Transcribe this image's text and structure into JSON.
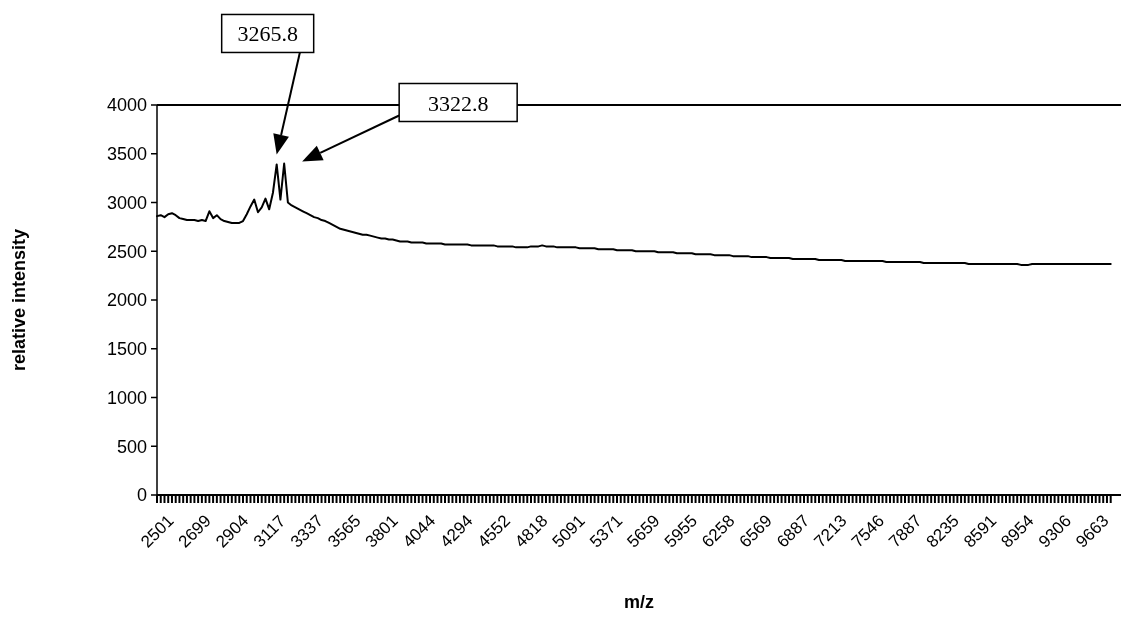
{
  "chart_data": {
    "type": "line",
    "xlabel": "m/z",
    "ylabel": "relative intensity",
    "ylim": [
      0,
      4000
    ],
    "yticks": [
      0,
      500,
      1000,
      1500,
      2000,
      2500,
      3000,
      3500,
      4000
    ],
    "grid": false,
    "marker": "none",
    "line_style": "solid",
    "annotations": [
      "3265.8",
      "3322.8"
    ],
    "categories": [
      "2501",
      null,
      null,
      null,
      null,
      null,
      null,
      null,
      null,
      null,
      "2699",
      null,
      null,
      null,
      null,
      null,
      null,
      null,
      null,
      null,
      "2904",
      null,
      null,
      null,
      null,
      null,
      null,
      null,
      null,
      null,
      "3117",
      null,
      null,
      null,
      null,
      null,
      null,
      null,
      null,
      null,
      "3337",
      null,
      null,
      null,
      null,
      null,
      null,
      null,
      null,
      null,
      "3565",
      null,
      null,
      null,
      null,
      null,
      null,
      null,
      null,
      null,
      "3801",
      null,
      null,
      null,
      null,
      null,
      null,
      null,
      null,
      null,
      "4044",
      null,
      null,
      null,
      null,
      null,
      null,
      null,
      null,
      null,
      "4294",
      null,
      null,
      null,
      null,
      null,
      null,
      null,
      null,
      null,
      "4552",
      null,
      null,
      null,
      null,
      null,
      null,
      null,
      null,
      null,
      "4818",
      null,
      null,
      null,
      null,
      null,
      null,
      null,
      null,
      null,
      "5091",
      null,
      null,
      null,
      null,
      null,
      null,
      null,
      null,
      null,
      "5371",
      null,
      null,
      null,
      null,
      null,
      null,
      null,
      null,
      null,
      "5659",
      null,
      null,
      null,
      null,
      null,
      null,
      null,
      null,
      null,
      "5955",
      null,
      null,
      null,
      null,
      null,
      null,
      null,
      null,
      null,
      "6258",
      null,
      null,
      null,
      null,
      null,
      null,
      null,
      null,
      null,
      "6569",
      null,
      null,
      null,
      null,
      null,
      null,
      null,
      null,
      null,
      "6887",
      null,
      null,
      null,
      null,
      null,
      null,
      null,
      null,
      null,
      "7213",
      null,
      null,
      null,
      null,
      null,
      null,
      null,
      null,
      null,
      "7546",
      null,
      null,
      null,
      null,
      null,
      null,
      null,
      null,
      null,
      "7887",
      null,
      null,
      null,
      null,
      null,
      null,
      null,
      null,
      null,
      "8235",
      null,
      null,
      null,
      null,
      null,
      null,
      null,
      null,
      null,
      "8591",
      null,
      null,
      null,
      null,
      null,
      null,
      null,
      null,
      null,
      "8954",
      null,
      null,
      null,
      null,
      null,
      null,
      null,
      null,
      null,
      "9306",
      null,
      null,
      null,
      null,
      null,
      null,
      null,
      null,
      null,
      "9663",
      null,
      null,
      null,
      null,
      null
    ],
    "series": [
      {
        "color": "#000000",
        "values": [
          2860,
          2870,
          2850,
          2880,
          2890,
          2870,
          2840,
          2830,
          2820,
          2820,
          2820,
          2810,
          2820,
          2810,
          2910,
          2840,
          2870,
          2830,
          2810,
          2800,
          2790,
          2790,
          2790,
          2810,
          2880,
          2960,
          3030,
          2900,
          2950,
          3040,
          2930,
          3100,
          3390,
          3030,
          3400,
          3000,
          2970,
          2950,
          2930,
          2910,
          2890,
          2870,
          2850,
          2840,
          2820,
          2810,
          2790,
          2770,
          2750,
          2730,
          2720,
          2710,
          2700,
          2690,
          2680,
          2670,
          2670,
          2660,
          2650,
          2640,
          2630,
          2630,
          2620,
          2620,
          2610,
          2600,
          2600,
          2600,
          2590,
          2590,
          2590,
          2590,
          2580,
          2580,
          2580,
          2580,
          2580,
          2570,
          2570,
          2570,
          2570,
          2570,
          2570,
          2570,
          2560,
          2560,
          2560,
          2560,
          2560,
          2560,
          2560,
          2550,
          2550,
          2550,
          2550,
          2550,
          2540,
          2540,
          2540,
          2540,
          2550,
          2550,
          2550,
          2560,
          2550,
          2550,
          2550,
          2540,
          2540,
          2540,
          2540,
          2540,
          2540,
          2530,
          2530,
          2530,
          2530,
          2530,
          2520,
          2520,
          2520,
          2520,
          2520,
          2510,
          2510,
          2510,
          2510,
          2510,
          2500,
          2500,
          2500,
          2500,
          2500,
          2500,
          2490,
          2490,
          2490,
          2490,
          2490,
          2480,
          2480,
          2480,
          2480,
          2480,
          2470,
          2470,
          2470,
          2470,
          2470,
          2460,
          2460,
          2460,
          2460,
          2460,
          2450,
          2450,
          2450,
          2450,
          2450,
          2440,
          2440,
          2440,
          2440,
          2440,
          2430,
          2430,
          2430,
          2430,
          2430,
          2430,
          2420,
          2420,
          2420,
          2420,
          2420,
          2420,
          2420,
          2410,
          2410,
          2410,
          2410,
          2410,
          2410,
          2410,
          2400,
          2400,
          2400,
          2400,
          2400,
          2400,
          2400,
          2400,
          2400,
          2400,
          2400,
          2390,
          2390,
          2390,
          2390,
          2390,
          2390,
          2390,
          2390,
          2390,
          2390,
          2380,
          2380,
          2380,
          2380,
          2380,
          2380,
          2380,
          2380,
          2380,
          2380,
          2380,
          2380,
          2370,
          2370,
          2370,
          2370,
          2370,
          2370,
          2370,
          2370,
          2370,
          2370,
          2370,
          2370,
          2370,
          2370,
          2360,
          2360,
          2360,
          2370,
          2370,
          2370,
          2370,
          2370,
          2370,
          2370,
          2370,
          2370,
          2370,
          2370,
          2370,
          2370,
          2370,
          2370,
          2370,
          2370,
          2370,
          2370,
          2370,
          2370,
          2370
        ]
      }
    ]
  }
}
